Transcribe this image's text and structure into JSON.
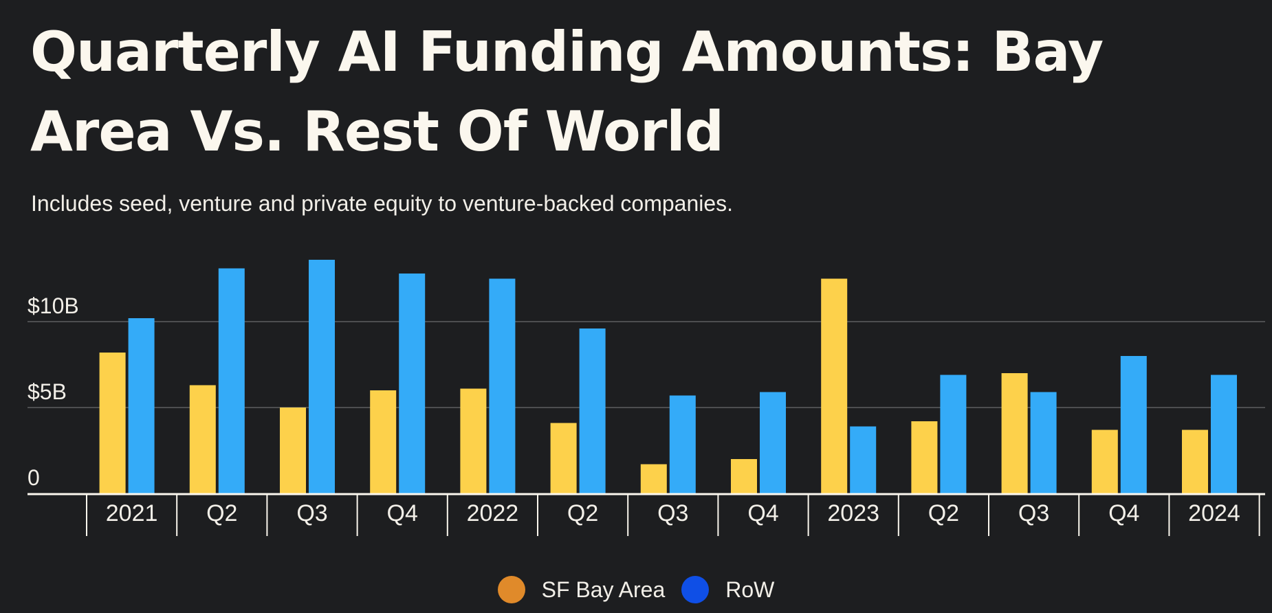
{
  "chart_data": {
    "type": "bar",
    "title": "Quarterly AI Funding Amounts: Bay Area Vs. Rest Of World",
    "subtitle": "Includes seed, venture and private equity to venture-backed companies.",
    "categories": [
      "2021",
      "Q2",
      "Q3",
      "Q4",
      "2022",
      "Q2",
      "Q3",
      "Q4",
      "2023",
      "Q2",
      "Q3",
      "Q4",
      "2024"
    ],
    "series": [
      {
        "name": "SF Bay Area",
        "color": "#fdd14b",
        "legend_color": "#e08a2a",
        "values": [
          8.2,
          6.3,
          5.0,
          6.0,
          6.1,
          4.1,
          1.7,
          2.0,
          12.5,
          4.2,
          7.0,
          3.7,
          3.7
        ]
      },
      {
        "name": "RoW",
        "color": "#34abf8",
        "legend_color": "#0f4fe6",
        "values": [
          10.2,
          13.1,
          13.6,
          12.8,
          12.5,
          9.6,
          5.7,
          5.9,
          3.9,
          6.9,
          5.9,
          8.0,
          6.9
        ]
      }
    ],
    "yticks": [
      {
        "value": 0,
        "label": "0"
      },
      {
        "value": 5,
        "label": "$5B"
      },
      {
        "value": 10,
        "label": "$10B"
      }
    ],
    "ylim": [
      0,
      14
    ],
    "xlabel": "",
    "ylabel": "",
    "grid": true,
    "legend_position": "bottom-center"
  }
}
